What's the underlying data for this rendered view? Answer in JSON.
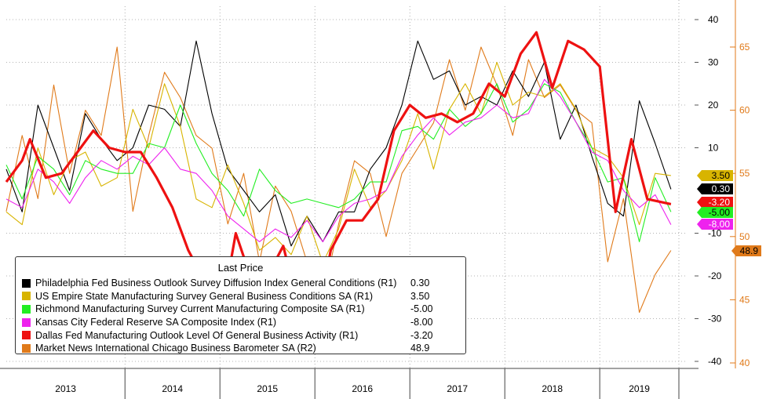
{
  "chart_data": {
    "type": "line",
    "x_axis": {
      "tick_labels": [
        "2013",
        "2014",
        "2015",
        "2016",
        "2017",
        "2018",
        "2019"
      ],
      "range": [
        "2012-10",
        "2019-11"
      ]
    },
    "y_axis_left": {
      "tick_labels": [
        "40",
        "30",
        "20",
        "10",
        "-10",
        "-20",
        "-30",
        "-40"
      ],
      "range": [
        -42,
        45
      ]
    },
    "y_axis_right": {
      "tick_labels": [
        "65",
        "60",
        "55",
        "50",
        "45",
        "40"
      ],
      "range": [
        39.9,
        67.4
      ]
    },
    "grid": true,
    "legend": {
      "title": "Last Price",
      "placement": "bottom-left"
    },
    "series": [
      {
        "name": "Philadelphia Fed Business Outlook Survey Diffusion Index General Conditions (R1)",
        "last_value": "0.30",
        "color": "#000000",
        "axis": "left",
        "x": [
          "2012-10",
          "2012-12",
          "2013-02",
          "2013-04",
          "2013-06",
          "2013-08",
          "2013-10",
          "2013-12",
          "2014-02",
          "2014-04",
          "2014-06",
          "2014-08",
          "2014-10",
          "2014-12",
          "2015-02",
          "2015-04",
          "2015-06",
          "2015-08",
          "2015-10",
          "2015-12",
          "2016-02",
          "2016-04",
          "2016-06",
          "2016-08",
          "2016-10",
          "2016-12",
          "2017-02",
          "2017-04",
          "2017-06",
          "2017-08",
          "2017-10",
          "2017-12",
          "2018-02",
          "2018-04",
          "2018-06",
          "2018-08",
          "2018-10",
          "2018-12",
          "2019-02",
          "2019-04",
          "2019-06",
          "2019-08",
          "2019-10"
        ],
        "values": [
          5,
          -5,
          20,
          10,
          0,
          18,
          12,
          7,
          10,
          20,
          19,
          15,
          35,
          18,
          5,
          0,
          -5,
          -1,
          -13,
          -6,
          -12,
          -5,
          -5,
          5,
          10,
          20,
          35,
          26,
          28,
          20,
          22,
          20,
          28,
          22,
          30,
          12,
          20,
          8,
          -3,
          -6,
          21,
          11,
          0.3
        ]
      },
      {
        "name": "US Empire State Manufacturing Survey General Business Conditions SA (R1)",
        "last_value": "3.50",
        "color": "#d8b400",
        "axis": "left",
        "x": [
          "2012-10",
          "2012-12",
          "2013-02",
          "2013-04",
          "2013-06",
          "2013-08",
          "2013-10",
          "2013-12",
          "2014-02",
          "2014-04",
          "2014-06",
          "2014-08",
          "2014-10",
          "2014-12",
          "2015-02",
          "2015-04",
          "2015-06",
          "2015-08",
          "2015-10",
          "2015-12",
          "2016-02",
          "2016-04",
          "2016-06",
          "2016-08",
          "2016-10",
          "2016-12",
          "2017-02",
          "2017-04",
          "2017-06",
          "2017-08",
          "2017-10",
          "2017-12",
          "2018-02",
          "2018-04",
          "2018-06",
          "2018-08",
          "2018-10",
          "2018-12",
          "2019-02",
          "2019-04",
          "2019-06",
          "2019-08",
          "2019-10"
        ],
        "values": [
          -5,
          -8,
          10,
          -1,
          7,
          9,
          1,
          3,
          19,
          10,
          25,
          15,
          -2,
          -4,
          6,
          -3,
          -14,
          -11,
          -15,
          -6,
          -17,
          -9,
          5,
          -4,
          0,
          7,
          18,
          5,
          19,
          25,
          18,
          30,
          20,
          23,
          22,
          25,
          19,
          10,
          8,
          3,
          -8,
          4,
          3.5
        ]
      },
      {
        "name": "Richmond Manufacturing Survey Current Manufacturing Composite SA (R1)",
        "last_value": "-5.00",
        "color": "#22ee22",
        "axis": "left",
        "x": [
          "2012-10",
          "2012-12",
          "2013-02",
          "2013-04",
          "2013-06",
          "2013-08",
          "2013-10",
          "2013-12",
          "2014-02",
          "2014-04",
          "2014-06",
          "2014-08",
          "2014-10",
          "2014-12",
          "2015-02",
          "2015-04",
          "2015-06",
          "2015-08",
          "2015-10",
          "2015-12",
          "2016-02",
          "2016-04",
          "2016-06",
          "2016-08",
          "2016-10",
          "2016-12",
          "2017-02",
          "2017-04",
          "2017-06",
          "2017-08",
          "2017-10",
          "2017-12",
          "2018-02",
          "2018-04",
          "2018-06",
          "2018-08",
          "2018-10",
          "2018-12",
          "2019-02",
          "2019-04",
          "2019-06",
          "2019-08",
          "2019-10"
        ],
        "values": [
          6,
          -2,
          8,
          5,
          -1,
          7,
          5,
          4,
          4,
          11,
          10,
          20,
          11,
          4,
          0,
          -6,
          5,
          0,
          -3,
          -2,
          -3,
          -4,
          -2,
          2,
          2,
          14,
          15,
          12,
          19,
          15,
          18,
          25,
          16,
          19,
          25,
          23,
          16,
          10,
          2,
          3,
          -12,
          3,
          -5
        ]
      },
      {
        "name": "Kansas City Federal Reserve SA Composite Index (R1)",
        "last_value": "-8.00",
        "color": "#ee22ee",
        "axis": "left",
        "x": [
          "2012-10",
          "2012-12",
          "2013-02",
          "2013-04",
          "2013-06",
          "2013-08",
          "2013-10",
          "2013-12",
          "2014-02",
          "2014-04",
          "2014-06",
          "2014-08",
          "2014-10",
          "2014-12",
          "2015-02",
          "2015-04",
          "2015-06",
          "2015-08",
          "2015-10",
          "2015-12",
          "2016-02",
          "2016-04",
          "2016-06",
          "2016-08",
          "2016-10",
          "2016-12",
          "2017-02",
          "2017-04",
          "2017-06",
          "2017-08",
          "2017-10",
          "2017-12",
          "2018-02",
          "2018-04",
          "2018-06",
          "2018-08",
          "2018-10",
          "2018-12",
          "2019-02",
          "2019-04",
          "2019-06",
          "2019-08",
          "2019-10"
        ],
        "values": [
          -2,
          -4,
          5,
          2,
          -3,
          3,
          7,
          5,
          8,
          6,
          10,
          5,
          4,
          0,
          -6,
          -9,
          -12,
          -9,
          -11,
          -7,
          -12,
          -6,
          -3,
          -2,
          0,
          8,
          13,
          17,
          13,
          16,
          17,
          20,
          17,
          18,
          26,
          22,
          16,
          9,
          7,
          0,
          -4,
          -1,
          -8
        ]
      },
      {
        "name": "Dallas Fed Manufacturing Outlook Level Of General Business Activity (R1)",
        "last_value": "-3.20",
        "color": "#ee1111",
        "axis": "left",
        "x": [
          "2012-10",
          "2012-12",
          "2013-01",
          "2013-03",
          "2013-05",
          "2013-07",
          "2013-09",
          "2013-11",
          "2014-01",
          "2014-03",
          "2014-05",
          "2014-07",
          "2014-09",
          "2014-11",
          "2015-01",
          "2015-03",
          "2015-05",
          "2015-07",
          "2015-09",
          "2015-11",
          "2016-01",
          "2016-03",
          "2016-05",
          "2016-07",
          "2016-09",
          "2016-11",
          "2017-01",
          "2017-03",
          "2017-05",
          "2017-07",
          "2017-09",
          "2017-11",
          "2018-01",
          "2018-03",
          "2018-05",
          "2018-07",
          "2018-09",
          "2018-11",
          "2019-01",
          "2019-03",
          "2019-05",
          "2019-07",
          "2019-10"
        ],
        "values": [
          2,
          7,
          12,
          3,
          4,
          9,
          14,
          10,
          9,
          9,
          3,
          -4,
          -14,
          -21,
          -31,
          -10,
          -21,
          -20,
          -13,
          -28,
          -34,
          -14,
          -7,
          -7,
          -2,
          14,
          20,
          17,
          18,
          16,
          18,
          25,
          22,
          32,
          37,
          24,
          35,
          33,
          29,
          -5,
          12,
          -2,
          -3.2
        ]
      },
      {
        "name": "Market News International Chicago Business Barometer SA (R2)",
        "last_value": "48.9",
        "color": "#e07a1a",
        "axis": "right",
        "x": [
          "2012-10",
          "2012-12",
          "2013-02",
          "2013-04",
          "2013-06",
          "2013-08",
          "2013-10",
          "2013-12",
          "2014-02",
          "2014-04",
          "2014-06",
          "2014-08",
          "2014-10",
          "2014-12",
          "2015-02",
          "2015-04",
          "2015-06",
          "2015-08",
          "2015-10",
          "2015-12",
          "2016-02",
          "2016-04",
          "2016-06",
          "2016-08",
          "2016-10",
          "2016-12",
          "2017-02",
          "2017-04",
          "2017-06",
          "2017-08",
          "2017-10",
          "2017-12",
          "2018-02",
          "2018-04",
          "2018-06",
          "2018-08",
          "2018-10",
          "2018-12",
          "2019-02",
          "2019-04",
          "2019-06",
          "2019-08",
          "2019-10"
        ],
        "values": [
          52,
          58,
          53,
          62,
          55,
          60,
          58,
          65,
          52,
          58,
          63,
          61,
          58,
          57,
          51,
          55,
          48,
          54,
          52,
          48,
          45,
          51,
          56,
          55,
          50,
          55,
          57,
          59,
          64,
          60,
          65,
          62,
          58,
          64,
          61,
          62,
          60,
          59,
          48,
          53,
          44,
          47,
          48.9
        ]
      }
    ]
  }
}
